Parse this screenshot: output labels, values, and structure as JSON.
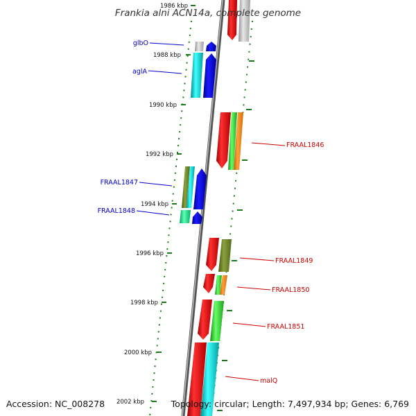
{
  "title": "Frankia alni ACN14a, complete genome",
  "accession": "Accession: NC_008278",
  "topology": "Topology: circular; Length: 7,497,934 bp; Genes: 6,769",
  "scale_labels": [
    "1986 kbp",
    "1988 kbp",
    "1990 kbp",
    "1992 kbp",
    "1994 kbp",
    "1996 kbp",
    "1998 kbp",
    "2000 kbp",
    "2002 kbp"
  ],
  "left_gene_labels": [
    "glbO",
    "aglA",
    "FRAAL1847",
    "FRAAL1848"
  ],
  "right_gene_labels": [
    "FRAAL1846",
    "FRAAL1849",
    "FRAAL1850",
    "FRAAL1851",
    "malQ"
  ],
  "colors": {
    "left_label": "#0000cc",
    "right_label": "#cc0000",
    "scale_dots": "#1a7a1a",
    "backbone": "#888888"
  }
}
